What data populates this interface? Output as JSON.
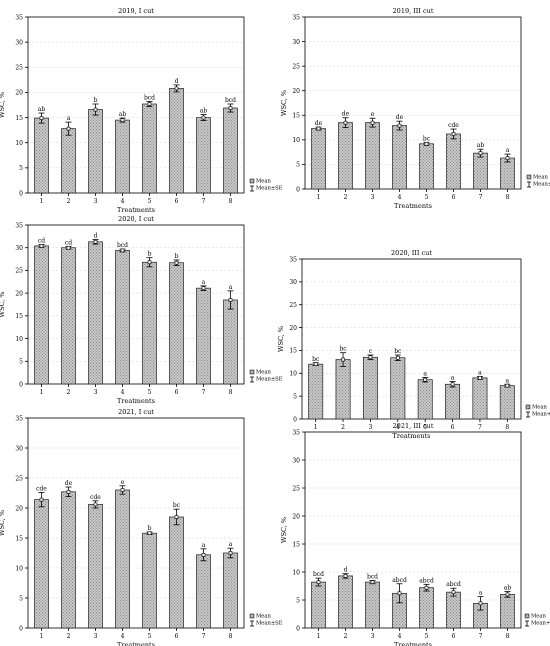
{
  "chart_data": [
    {
      "type": "bar",
      "title": "2019, I cut",
      "xlabel": "Treatments",
      "ylabel": "WSC, %",
      "ylim": [
        0,
        35
      ],
      "yticks": [
        "0",
        "5",
        "10",
        "15",
        "20",
        "25",
        "30",
        "35"
      ],
      "categories": [
        "1",
        "2",
        "3",
        "4",
        "5",
        "6",
        "7",
        "8"
      ],
      "values": [
        14.9,
        12.8,
        16.6,
        14.5,
        17.7,
        20.8,
        15.0,
        16.9
      ],
      "se": [
        1.0,
        1.3,
        1.1,
        0.4,
        0.5,
        0.7,
        0.6,
        0.8
      ],
      "letters": [
        "ab",
        "a",
        "b",
        "ab",
        "bcd",
        "d",
        "ab",
        "bcd"
      ],
      "legend": [
        "Mean",
        "Mean±SE"
      ],
      "grid": true
    },
    {
      "type": "bar",
      "title": "2019, III cut",
      "xlabel": "Treatments",
      "ylabel": "WSC, %",
      "ylim": [
        0,
        35
      ],
      "yticks": [
        "0",
        "5",
        "10",
        "15",
        "20",
        "25",
        "30",
        "35"
      ],
      "categories": [
        "1",
        "2",
        "3",
        "4",
        "5",
        "6",
        "7",
        "8"
      ],
      "values": [
        12.3,
        13.5,
        13.5,
        12.9,
        9.2,
        11.2,
        7.3,
        6.3
      ],
      "se": [
        0.3,
        1.0,
        0.9,
        0.9,
        0.3,
        1.0,
        0.8,
        0.8
      ],
      "letters": [
        "de",
        "de",
        "e",
        "de",
        "bc",
        "cde",
        "ab",
        "a"
      ],
      "legend": [
        "Mean",
        "Mean±SE"
      ],
      "grid": true
    },
    {
      "type": "bar",
      "title": "2020, I cut",
      "xlabel": "Treatments",
      "ylabel": "WSC, %",
      "ylim": [
        0,
        35
      ],
      "yticks": [
        "0",
        "5",
        "10",
        "15",
        "20",
        "25",
        "30",
        "35"
      ],
      "categories": [
        "1",
        "2",
        "3",
        "4",
        "5",
        "6",
        "7",
        "8"
      ],
      "values": [
        30.4,
        30.0,
        31.3,
        29.4,
        26.8,
        26.7,
        21.1,
        18.5
      ],
      "se": [
        0.3,
        0.3,
        0.5,
        0.3,
        1.0,
        0.6,
        0.5,
        2.0
      ],
      "letters": [
        "cd",
        "cd",
        "d",
        "bcd",
        "b",
        "b",
        "a",
        "a"
      ],
      "legend": [
        "Mean",
        "Mean±SE"
      ],
      "grid": true
    },
    {
      "type": "bar",
      "title": "2020, III cut",
      "xlabel": "Treatments",
      "ylabel": "WSC, %",
      "ylim": [
        0,
        35
      ],
      "yticks": [
        "0",
        "5",
        "10",
        "15",
        "20",
        "25",
        "30",
        "35"
      ],
      "categories": [
        "1",
        "2",
        "3",
        "4",
        "5",
        "6",
        "7",
        "8"
      ],
      "values": [
        12.0,
        13.0,
        13.5,
        13.4,
        8.6,
        7.6,
        9.0,
        7.3
      ],
      "se": [
        0.3,
        1.5,
        0.5,
        0.6,
        0.5,
        0.6,
        0.3,
        0.3
      ],
      "letters": [
        "bc",
        "bc",
        "c",
        "bc",
        "a",
        "a",
        "a",
        "a"
      ],
      "legend": [
        "Mean",
        "Mean+SE"
      ],
      "grid": true
    },
    {
      "type": "bar",
      "title": "2021, I cut",
      "xlabel": "Treatments",
      "ylabel": "WSC, %",
      "ylim": [
        0,
        35
      ],
      "yticks": [
        "0",
        "5",
        "10",
        "15",
        "20",
        "25",
        "30",
        "35"
      ],
      "categories": [
        "1",
        "2",
        "3",
        "4",
        "5",
        "6",
        "7",
        "8"
      ],
      "values": [
        21.4,
        22.7,
        20.6,
        23.0,
        15.8,
        18.5,
        12.2,
        12.5
      ],
      "se": [
        1.2,
        0.8,
        0.6,
        0.7,
        0.2,
        1.3,
        1.0,
        0.8
      ],
      "letters": [
        "cde",
        "de",
        "cde",
        "e",
        "b",
        "bc",
        "a",
        "a"
      ],
      "legend": [
        "Mean",
        "Mean±SE"
      ],
      "grid": true
    },
    {
      "type": "bar",
      "title": "2021, III cut",
      "xlabel": "Treatments",
      "ylabel": "WSC, %",
      "ylim": [
        0,
        35
      ],
      "yticks": [
        "0",
        "5",
        "10",
        "15",
        "20",
        "25",
        "30",
        "35"
      ],
      "categories": [
        "1",
        "2",
        "3",
        "4",
        "5",
        "6",
        "7",
        "8"
      ],
      "values": [
        8.2,
        9.3,
        8.2,
        6.2,
        7.2,
        6.4,
        4.4,
        6.0
      ],
      "se": [
        0.7,
        0.4,
        0.3,
        1.7,
        0.6,
        0.7,
        1.2,
        0.5
      ],
      "letters": [
        "bcd",
        "d",
        "bcd",
        "abcd",
        "abcd",
        "abcd",
        "a",
        "ab"
      ],
      "legend": [
        "Mean",
        "Mean+SE"
      ],
      "grid": true
    }
  ]
}
